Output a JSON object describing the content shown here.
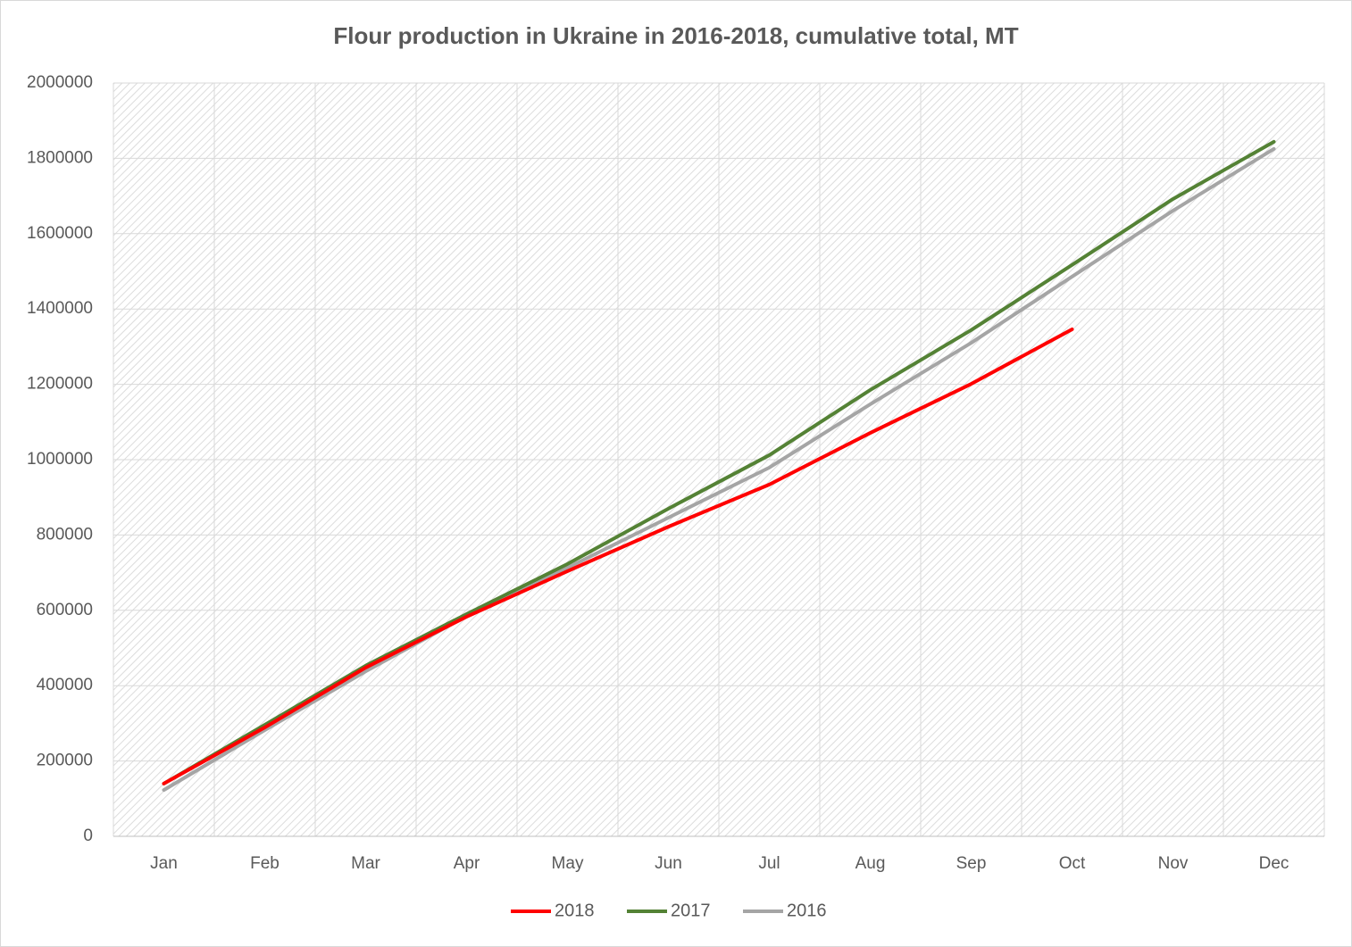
{
  "chart_data": {
    "type": "line",
    "title": "Flour production in Ukraine in 2016-2018, cumulative total, MT",
    "categories": [
      "Jan",
      "Feb",
      "Mar",
      "Apr",
      "May",
      "Jun",
      "Jul",
      "Aug",
      "Sep",
      "Oct",
      "Nov",
      "Dec"
    ],
    "series": [
      {
        "name": "2018",
        "color": "#ff0000",
        "values": [
          140000,
          289000,
          448000,
          583000,
          704000,
          822000,
          934000,
          1071000,
          1201000,
          1346000,
          null,
          null
        ]
      },
      {
        "name": "2017",
        "color": "#548235",
        "values": [
          140000,
          296000,
          453000,
          590000,
          723000,
          870000,
          1012000,
          1185000,
          1344000,
          1517000,
          1692000,
          1844000
        ]
      },
      {
        "name": "2016",
        "color": "#a5a5a5",
        "values": [
          123000,
          282000,
          438000,
          585000,
          713000,
          846000,
          979000,
          1147000,
          1310000,
          1486000,
          1661000,
          1825000
        ]
      }
    ],
    "ylim": [
      0,
      2000000
    ],
    "yticks": [
      0,
      200000,
      400000,
      600000,
      800000,
      1000000,
      1200000,
      1400000,
      1600000,
      1800000,
      2000000
    ],
    "grid": true,
    "legend": "bottom"
  }
}
